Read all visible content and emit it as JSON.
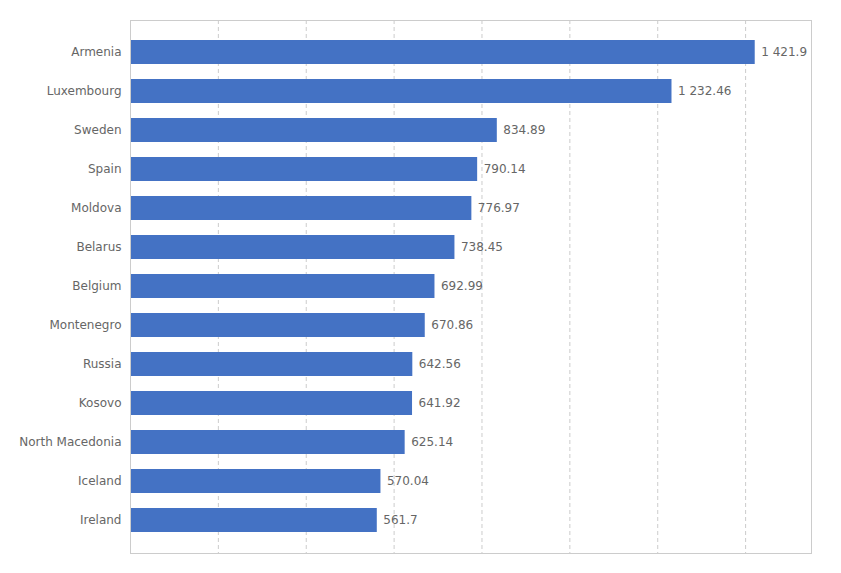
{
  "chart_data": {
    "type": "bar",
    "orientation": "horizontal",
    "categories": [
      "Ireland",
      "Iceland",
      "North Macedonia",
      "Kosovo",
      "Russia",
      "Montenegro",
      "Belgium",
      "Belarus",
      "Moldova",
      "Spain",
      "Sweden",
      "Luxembourg",
      "Armenia"
    ],
    "values": [
      561.7,
      570.04,
      625.14,
      641.92,
      642.56,
      670.86,
      692.99,
      738.45,
      776.97,
      790.14,
      834.89,
      1232.46,
      1421.9
    ],
    "value_labels": [
      "561.7",
      "570.04",
      "625.14",
      "641.92",
      "642.56",
      "670.86",
      "692.99",
      "738.45",
      "776.97",
      "790.14",
      "834.89",
      "1 232.46",
      "1 421.9"
    ],
    "data_labels": true,
    "color": "#4472C4",
    "xlim": [
      0,
      1550
    ],
    "xticks": [
      200,
      400,
      600,
      800,
      1000,
      1200,
      1400
    ],
    "grid": true,
    "tick_labels": "y"
  }
}
